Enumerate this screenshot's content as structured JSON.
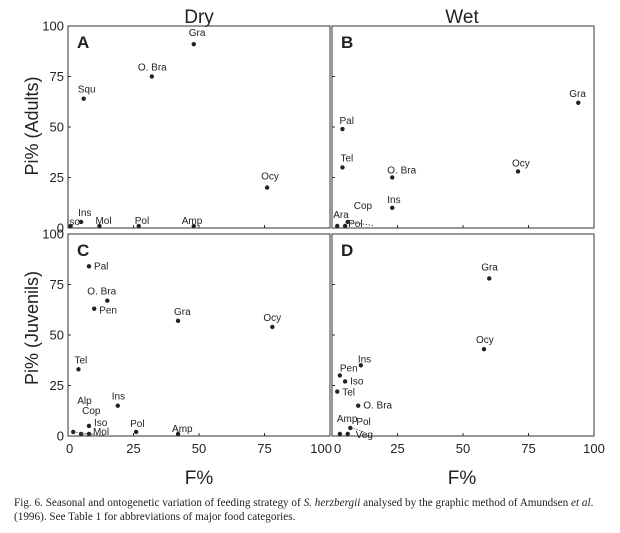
{
  "columns": [
    "Dry",
    "Wet"
  ],
  "row_ylabels": [
    "Pi% (Adults)",
    "Pi% (Juvenils)"
  ],
  "x_axis_label": "F%",
  "caption": {
    "text_1": "Fig. 6. Seasonal and ontogenetic variation of feeding strategy of ",
    "species": "S. herzbergii",
    "text_2": " analysed by the graphic method of Amundsen ",
    "etal": "et al",
    "text_3": ". (1996). See Table 1 for abbreviations of major food categories."
  },
  "chart_data": [
    {
      "type": "scatter",
      "panel": "A",
      "xlim": [
        0,
        100
      ],
      "ylim": [
        0,
        100
      ],
      "x_ticks": [
        "0",
        "25",
        "50",
        "75",
        "100"
      ],
      "y_ticks": [
        "0",
        "25",
        "50",
        "75",
        "100"
      ],
      "points": [
        {
          "label": "Gra",
          "x": 48,
          "y": 91
        },
        {
          "label": "O. Bra",
          "x": 32,
          "y": 75
        },
        {
          "label": "Squ",
          "x": 6,
          "y": 64
        },
        {
          "label": "Ocy",
          "x": 76,
          "y": 20
        },
        {
          "label": "Ins",
          "x": 5,
          "y": 3
        },
        {
          "label": "Iso",
          "x": 1,
          "y": 0
        },
        {
          "label": "Mol",
          "x": 12,
          "y": 0
        },
        {
          "label": "Pol",
          "x": 27,
          "y": 0
        },
        {
          "label": "Amp",
          "x": 48,
          "y": 0
        }
      ]
    },
    {
      "type": "scatter",
      "panel": "B",
      "xlim": [
        0,
        100
      ],
      "ylim": [
        0,
        100
      ],
      "x_ticks": [
        "0",
        "25",
        "50",
        "75",
        "100"
      ],
      "y_ticks": [
        "0",
        "25",
        "50",
        "75",
        "100"
      ],
      "points": [
        {
          "label": "Gra",
          "x": 94,
          "y": 62
        },
        {
          "label": "Pal",
          "x": 4,
          "y": 49
        },
        {
          "label": "Tel",
          "x": 4,
          "y": 30
        },
        {
          "label": "O. Bra",
          "x": 23,
          "y": 25
        },
        {
          "label": "Ocy",
          "x": 71,
          "y": 28
        },
        {
          "label": "Ins",
          "x": 23,
          "y": 10
        },
        {
          "label": "Cop",
          "x": 6,
          "y": 3
        },
        {
          "label": "Ara",
          "x": 2,
          "y": 1
        },
        {
          "label": "Pol",
          "x": 5,
          "y": 0
        }
      ]
    },
    {
      "type": "scatter",
      "panel": "C",
      "xlim": [
        0,
        100
      ],
      "ylim": [
        0,
        100
      ],
      "x_ticks": [
        "0",
        "25",
        "50",
        "75",
        "100"
      ],
      "y_ticks": [
        "0",
        "25",
        "50",
        "75",
        "100"
      ],
      "points": [
        {
          "label": "Pal",
          "x": 8,
          "y": 84
        },
        {
          "label": "O. Bra",
          "x": 15,
          "y": 67
        },
        {
          "label": "Pen",
          "x": 10,
          "y": 63
        },
        {
          "label": "Gra",
          "x": 42,
          "y": 57
        },
        {
          "label": "Ocy",
          "x": 78,
          "y": 54
        },
        {
          "label": "Tel",
          "x": 4,
          "y": 33
        },
        {
          "label": "Alp",
          "x": 2,
          "y": 2
        },
        {
          "label": "Cop",
          "x": 5,
          "y": 1
        },
        {
          "label": "Ins",
          "x": 19,
          "y": 15
        },
        {
          "label": "Iso",
          "x": 8,
          "y": 5
        },
        {
          "label": "Mol",
          "x": 8,
          "y": 1
        },
        {
          "label": "Pol",
          "x": 26,
          "y": 2
        },
        {
          "label": "Amp",
          "x": 42,
          "y": 0
        }
      ]
    },
    {
      "type": "scatter",
      "panel": "D",
      "xlim": [
        0,
        100
      ],
      "ylim": [
        0,
        100
      ],
      "x_ticks": [
        "0",
        "25",
        "50",
        "75",
        "100"
      ],
      "y_ticks": [
        "0",
        "25",
        "50",
        "75",
        "100"
      ],
      "points": [
        {
          "label": "Gra",
          "x": 60,
          "y": 78
        },
        {
          "label": "Ocy",
          "x": 58,
          "y": 43
        },
        {
          "label": "Pen",
          "x": 3,
          "y": 30
        },
        {
          "label": "Ins",
          "x": 11,
          "y": 35
        },
        {
          "label": "Iso",
          "x": 5,
          "y": 27
        },
        {
          "label": "Tel",
          "x": 2,
          "y": 22
        },
        {
          "label": "O. Bra",
          "x": 10,
          "y": 15
        },
        {
          "label": "Amp",
          "x": 3,
          "y": 1
        },
        {
          "label": "Pol",
          "x": 7,
          "y": 4
        },
        {
          "label": "Veg",
          "x": 6,
          "y": 1
        }
      ]
    }
  ]
}
